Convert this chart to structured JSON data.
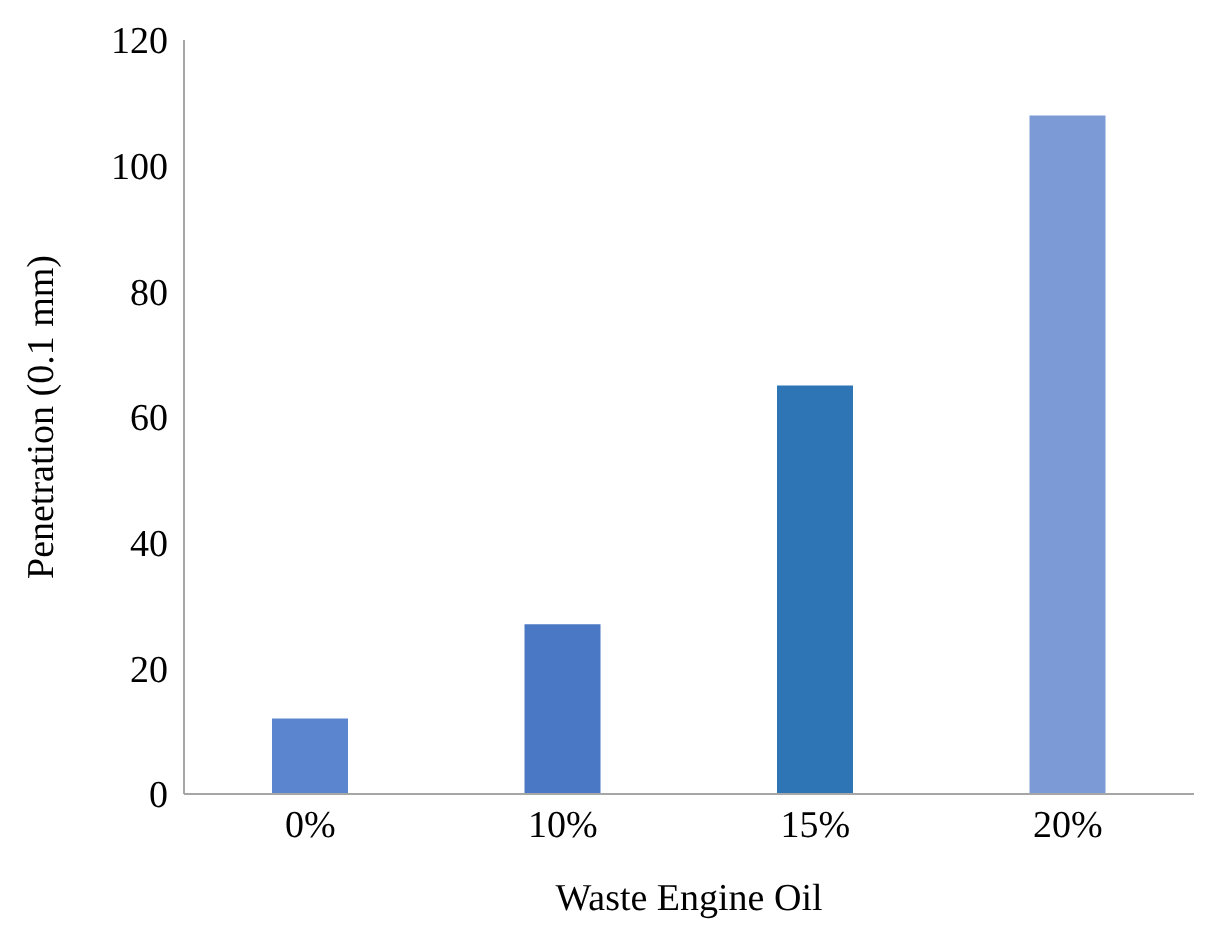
{
  "chart_data": {
    "type": "bar",
    "xlabel": "Waste Engine Oil",
    "ylabel": "Penetration (0.1 mm)",
    "categories": [
      "0%",
      "10%",
      "15%",
      "20%"
    ],
    "values": [
      12,
      27,
      65,
      108
    ],
    "colors": [
      "#5b86cf",
      "#4a78c4",
      "#2e75b6",
      "#7c9bd6"
    ],
    "ylim": [
      0,
      120
    ],
    "yticks": [
      0,
      20,
      40,
      60,
      80,
      100,
      120
    ],
    "grid": false
  }
}
